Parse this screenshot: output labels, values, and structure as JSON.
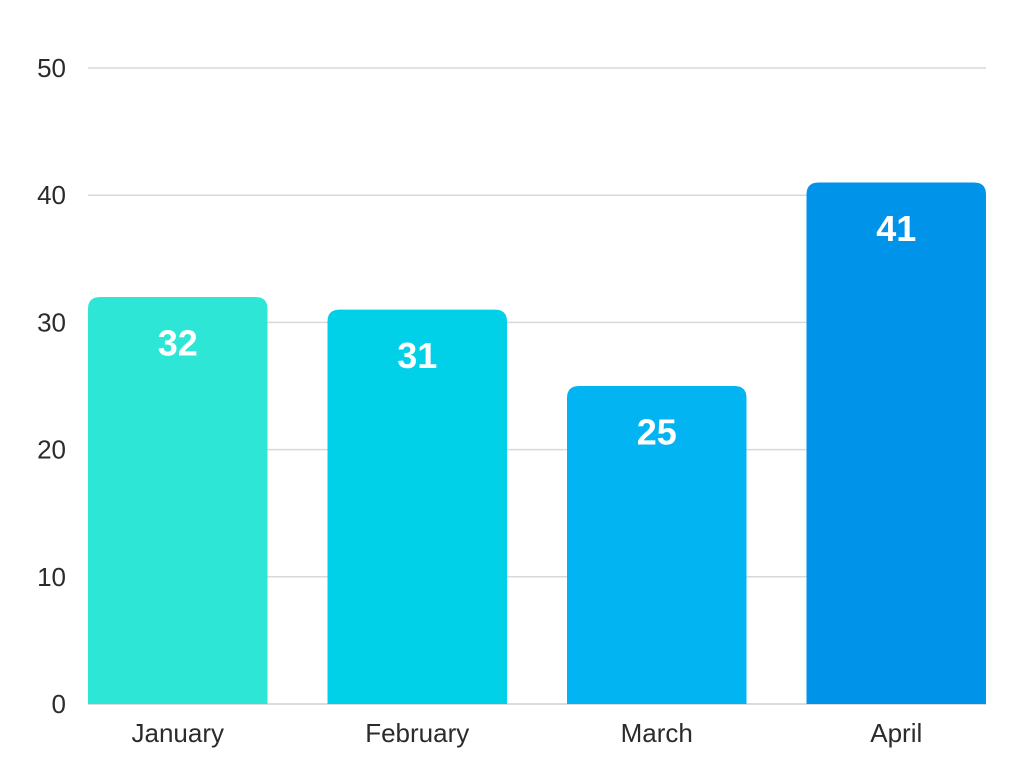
{
  "chart_data": {
    "type": "bar",
    "title": "",
    "xlabel": "",
    "ylabel": "",
    "categories": [
      "January",
      "February",
      "March",
      "April"
    ],
    "values": [
      32,
      31,
      25,
      41
    ],
    "ylim": [
      0,
      50
    ],
    "yticks": [
      0,
      10,
      20,
      30,
      40,
      50
    ],
    "grid": true,
    "legend": "none",
    "data_labels": true,
    "colors": [
      "#2ee6d6",
      "#00d0e8",
      "#02b4f2",
      "#0093ea"
    ]
  }
}
